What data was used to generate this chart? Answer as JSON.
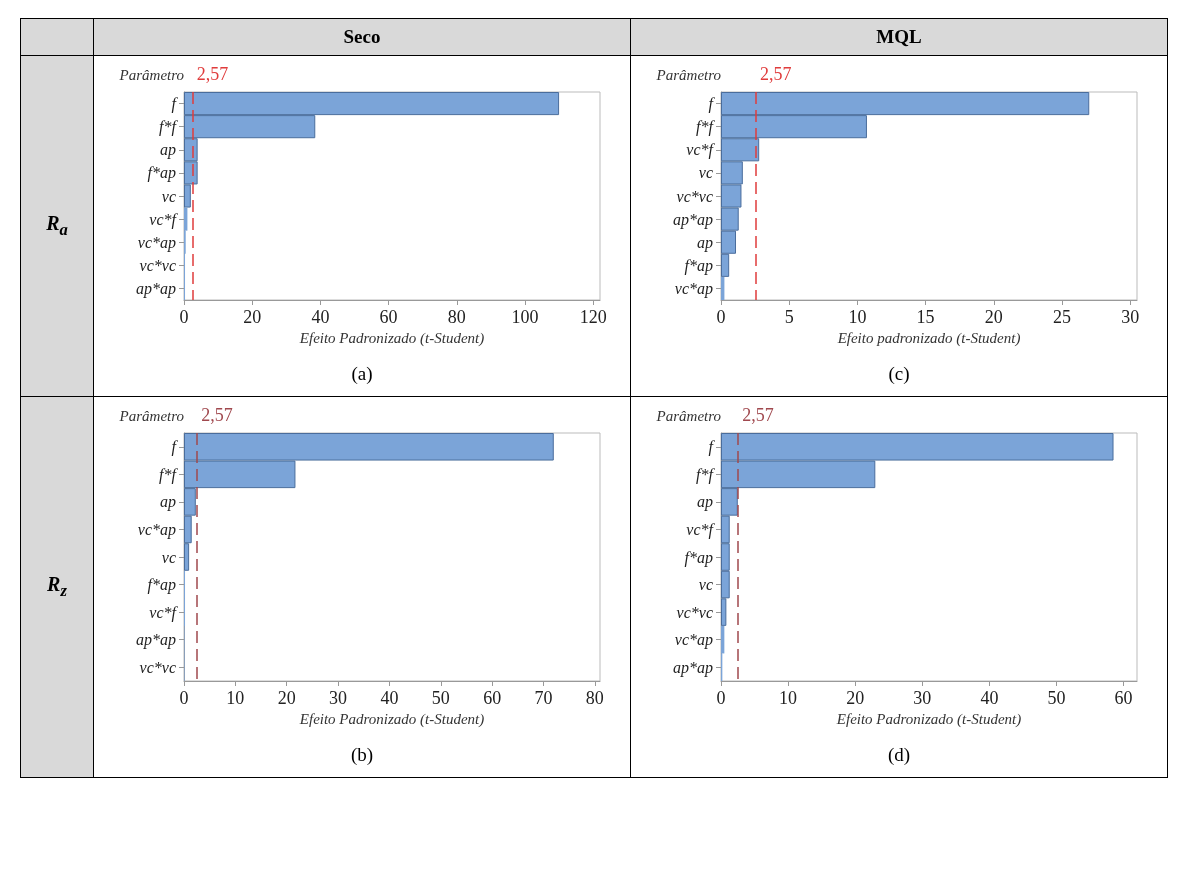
{
  "chart_data": [
    {
      "type": "bar",
      "orientation": "horizontal",
      "title": "Seco",
      "subtitle": "R$_{a}$",
      "ylabel": "Parâmetro",
      "xlabel": "Efeito Padronizado (t-Student)",
      "annotations": [
        "(a)"
      ],
      "categories": [
        "f",
        "f*f",
        "ap",
        "f*ap",
        "vc",
        "vc*f",
        "vc*ap",
        "vc*vc",
        "ap*ap"
      ],
      "series": [
        {
          "color": "#7ba4d8",
          "values": [
            110,
            38.5,
            4,
            4,
            2,
            1,
            0.5,
            0.3,
            0.3
          ]
        }
      ],
      "xlim": [
        0,
        122
      ],
      "xticks": [
        0,
        20,
        40,
        60,
        80,
        100,
        120
      ],
      "grid": false,
      "ref_lines": [
        {
          "axis": "x",
          "value": 2.57,
          "label": "2,57",
          "color": "#e03c3c",
          "line_style": "dashed"
        }
      ]
    },
    {
      "type": "bar",
      "orientation": "horizontal",
      "title": "MQL",
      "ylabel": "Parâmetro",
      "xlabel": "Efeito padronizado (t-Student)",
      "annotations": [
        "(c)"
      ],
      "categories": [
        "f",
        "f*f",
        "vc*f",
        "vc",
        "vc*vc",
        "ap*ap",
        "ap",
        "f*ap",
        "vc*ap"
      ],
      "series": [
        {
          "color": "#7ba4d8",
          "values": [
            27,
            10.7,
            2.8,
            1.6,
            1.5,
            1.3,
            1.1,
            0.6,
            0.25
          ]
        }
      ],
      "xlim": [
        0,
        30.5
      ],
      "xticks": [
        0,
        5,
        10,
        15,
        20,
        25,
        30
      ],
      "grid": false,
      "ref_lines": [
        {
          "axis": "x",
          "value": 2.57,
          "label": "2,57",
          "color": "#e03c3c",
          "line_style": "dashed"
        }
      ]
    },
    {
      "type": "bar",
      "orientation": "horizontal",
      "subtitle": "R$_{z}$",
      "ylabel": "Parâmetro",
      "xlabel": "Efeito Padronizado (t-Student)",
      "annotations": [
        "(b)"
      ],
      "categories": [
        "f",
        "f*f",
        "ap",
        "vc*ap",
        "vc",
        "f*ap",
        "vc*f",
        "ap*ap",
        "vc*vc"
      ],
      "series": [
        {
          "color": "#7ba4d8",
          "values": [
            72,
            21.7,
            2.3,
            1.5,
            1,
            0.2,
            0.2,
            0.1,
            0.1
          ]
        }
      ],
      "xlim": [
        0,
        81
      ],
      "xticks": [
        0,
        10,
        20,
        30,
        40,
        50,
        60,
        70,
        80
      ],
      "grid": false,
      "ref_lines": [
        {
          "axis": "x",
          "value": 2.57,
          "label": "2,57",
          "color": "#a0484e",
          "line_style": "dashed"
        }
      ]
    },
    {
      "type": "bar",
      "orientation": "horizontal",
      "ylabel": "Parâmetro",
      "xlabel": "Efeito Padronizado (t-Student)",
      "annotations": [
        "(d)"
      ],
      "categories": [
        "f",
        "f*f",
        "ap",
        "vc*f",
        "f*ap",
        "vc",
        "vc*vc",
        "vc*ap",
        "ap*ap"
      ],
      "series": [
        {
          "color": "#7ba4d8",
          "values": [
            58.5,
            23,
            2.5,
            1.3,
            1.3,
            1.3,
            0.8,
            0.5,
            0.2
          ]
        }
      ],
      "xlim": [
        0,
        62
      ],
      "xticks": [
        0,
        10,
        20,
        30,
        40,
        50,
        60
      ],
      "grid": false,
      "ref_lines": [
        {
          "axis": "x",
          "value": 2.57,
          "label": "2,57",
          "color": "#a0484e",
          "line_style": "dashed"
        }
      ]
    }
  ]
}
